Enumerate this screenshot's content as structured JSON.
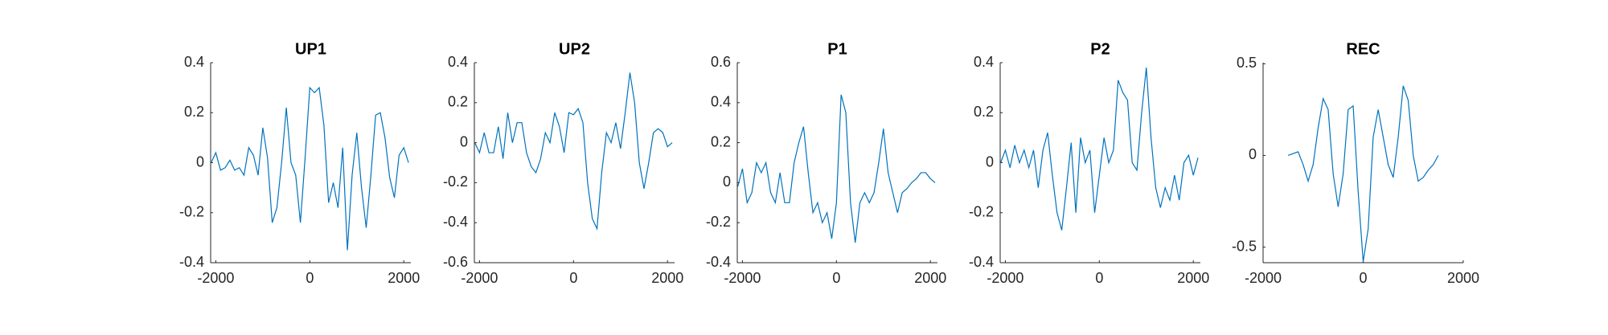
{
  "chart_data": [
    {
      "type": "line",
      "title": "UP1",
      "x": [
        -2100,
        -2000,
        -1900,
        -1800,
        -1700,
        -1600,
        -1500,
        -1400,
        -1300,
        -1200,
        -1100,
        -1000,
        -900,
        -800,
        -700,
        -600,
        -500,
        -400,
        -300,
        -200,
        -100,
        0,
        100,
        200,
        300,
        400,
        500,
        600,
        700,
        800,
        900,
        1000,
        1100,
        1200,
        1300,
        1400,
        1500,
        1600,
        1700,
        1800,
        1900,
        2000,
        2100
      ],
      "series": [
        {
          "color": "#0072bd",
          "values": [
            0,
            0.04,
            -0.03,
            -0.02,
            0.01,
            -0.03,
            -0.02,
            -0.05,
            0.06,
            0.03,
            -0.05,
            0.14,
            0.02,
            -0.24,
            -0.18,
            0,
            0.22,
            0,
            -0.05,
            -0.24,
            0.02,
            0.3,
            0.28,
            0.3,
            0.15,
            -0.16,
            -0.08,
            -0.18,
            0.06,
            -0.35,
            -0.05,
            0.12,
            -0.1,
            -0.26,
            -0.05,
            0.19,
            0.2,
            0.1,
            -0.06,
            -0.14,
            0.03,
            0.06,
            0
          ]
        }
      ],
      "xlim": [
        -2110,
        2150
      ],
      "xticks": [
        -2000,
        0,
        2000
      ],
      "ylim": [
        -0.4,
        0.4
      ],
      "yticks": [
        -0.4,
        -0.2,
        0,
        0.2,
        0.4
      ]
    },
    {
      "type": "line",
      "title": "UP2",
      "x": [
        -2100,
        -2000,
        -1900,
        -1800,
        -1700,
        -1600,
        -1500,
        -1400,
        -1300,
        -1200,
        -1100,
        -1000,
        -900,
        -800,
        -700,
        -600,
        -500,
        -400,
        -300,
        -200,
        -100,
        0,
        100,
        200,
        300,
        400,
        500,
        600,
        700,
        800,
        900,
        1000,
        1100,
        1200,
        1300,
        1400,
        1500,
        1600,
        1700,
        1800,
        1900,
        2000,
        2100
      ],
      "series": [
        {
          "color": "#0072bd",
          "values": [
            0,
            -0.05,
            0.05,
            -0.05,
            -0.05,
            0.08,
            -0.08,
            0.15,
            0,
            0.1,
            0.1,
            -0.05,
            -0.12,
            -0.15,
            -0.08,
            0.05,
            0,
            0.15,
            0.08,
            -0.05,
            0.15,
            0.14,
            0.17,
            0.1,
            -0.2,
            -0.38,
            -0.43,
            -0.15,
            0.05,
            0,
            0.1,
            -0.03,
            0.15,
            0.35,
            0.2,
            -0.1,
            -0.23,
            -0.1,
            0.05,
            0.07,
            0.05,
            -0.02,
            0
          ]
        }
      ],
      "xlim": [
        -2110,
        2150
      ],
      "xticks": [
        -2000,
        0,
        2000
      ],
      "ylim": [
        -0.6,
        0.4
      ],
      "yticks": [
        -0.6,
        -0.4,
        -0.2,
        0,
        0.2,
        0.4
      ]
    },
    {
      "type": "line",
      "title": "P1",
      "x": [
        -2100,
        -2000,
        -1900,
        -1800,
        -1700,
        -1600,
        -1500,
        -1400,
        -1300,
        -1200,
        -1100,
        -1000,
        -900,
        -800,
        -700,
        -600,
        -500,
        -400,
        -300,
        -200,
        -100,
        0,
        100,
        200,
        300,
        400,
        500,
        600,
        700,
        800,
        900,
        1000,
        1100,
        1200,
        1300,
        1400,
        1500,
        1600,
        1700,
        1800,
        1900,
        2000,
        2100
      ],
      "series": [
        {
          "color": "#0072bd",
          "values": [
            -0.02,
            0.07,
            -0.1,
            -0.05,
            0.1,
            0.05,
            0.1,
            -0.05,
            -0.1,
            0.05,
            -0.1,
            -0.1,
            0.1,
            0.2,
            0.28,
            0.05,
            -0.15,
            -0.1,
            -0.2,
            -0.15,
            -0.28,
            -0.1,
            0.44,
            0.35,
            -0.1,
            -0.3,
            -0.1,
            -0.05,
            -0.1,
            -0.05,
            0.1,
            0.27,
            0.05,
            -0.05,
            -0.15,
            -0.05,
            -0.03,
            0,
            0.02,
            0.05,
            0.05,
            0.02,
            0
          ]
        }
      ],
      "xlim": [
        -2110,
        2150
      ],
      "xticks": [
        -2000,
        0,
        2000
      ],
      "ylim": [
        -0.4,
        0.6
      ],
      "yticks": [
        -0.4,
        -0.2,
        0,
        0.2,
        0.4,
        0.6
      ]
    },
    {
      "type": "line",
      "title": "P2",
      "x": [
        -2100,
        -2000,
        -1900,
        -1800,
        -1700,
        -1600,
        -1500,
        -1400,
        -1300,
        -1200,
        -1100,
        -1000,
        -900,
        -800,
        -700,
        -600,
        -500,
        -400,
        -300,
        -200,
        -100,
        0,
        100,
        200,
        300,
        400,
        500,
        600,
        700,
        800,
        900,
        1000,
        1100,
        1200,
        1300,
        1400,
        1500,
        1600,
        1700,
        1800,
        1900,
        2000,
        2100
      ],
      "series": [
        {
          "color": "#0072bd",
          "values": [
            0,
            0.05,
            -0.02,
            0.07,
            0,
            0.05,
            -0.02,
            0.05,
            -0.1,
            0.05,
            0.12,
            -0.05,
            -0.2,
            -0.27,
            -0.1,
            0.08,
            -0.2,
            0.1,
            0,
            0.05,
            -0.2,
            -0.05,
            0.1,
            0,
            0.05,
            0.33,
            0.28,
            0.25,
            0,
            -0.03,
            0.2,
            0.38,
            0.1,
            -0.1,
            -0.18,
            -0.1,
            -0.15,
            -0.05,
            -0.15,
            0,
            0.03,
            -0.05,
            0.02
          ]
        }
      ],
      "xlim": [
        -2110,
        2150
      ],
      "xticks": [
        -2000,
        0,
        2000
      ],
      "ylim": [
        -0.4,
        0.4
      ],
      "yticks": [
        -0.4,
        -0.2,
        0,
        0.2,
        0.4
      ]
    },
    {
      "type": "line",
      "title": "REC",
      "x": [
        -1500,
        -1400,
        -1300,
        -1200,
        -1100,
        -1000,
        -900,
        -800,
        -700,
        -600,
        -500,
        -400,
        -300,
        -200,
        -100,
        0,
        100,
        200,
        300,
        400,
        500,
        600,
        700,
        800,
        900,
        1000,
        1100,
        1200,
        1300,
        1400,
        1500
      ],
      "series": [
        {
          "color": "#0072bd",
          "values": [
            0,
            0.01,
            0.02,
            -0.05,
            -0.14,
            -0.05,
            0.15,
            0.31,
            0.25,
            -0.1,
            -0.28,
            -0.1,
            0.25,
            0.27,
            -0.2,
            -0.58,
            -0.4,
            0.1,
            0.25,
            0.1,
            -0.05,
            -0.12,
            0.1,
            0.38,
            0.3,
            0,
            -0.14,
            -0.12,
            -0.08,
            -0.05,
            0
          ]
        }
      ],
      "xlim": [
        -2000,
        2000
      ],
      "xticks": [
        -2000,
        0,
        2000
      ],
      "ylim": [
        -0.585,
        0.506
      ],
      "yticks": [
        -0.5,
        0,
        0.5
      ]
    }
  ]
}
